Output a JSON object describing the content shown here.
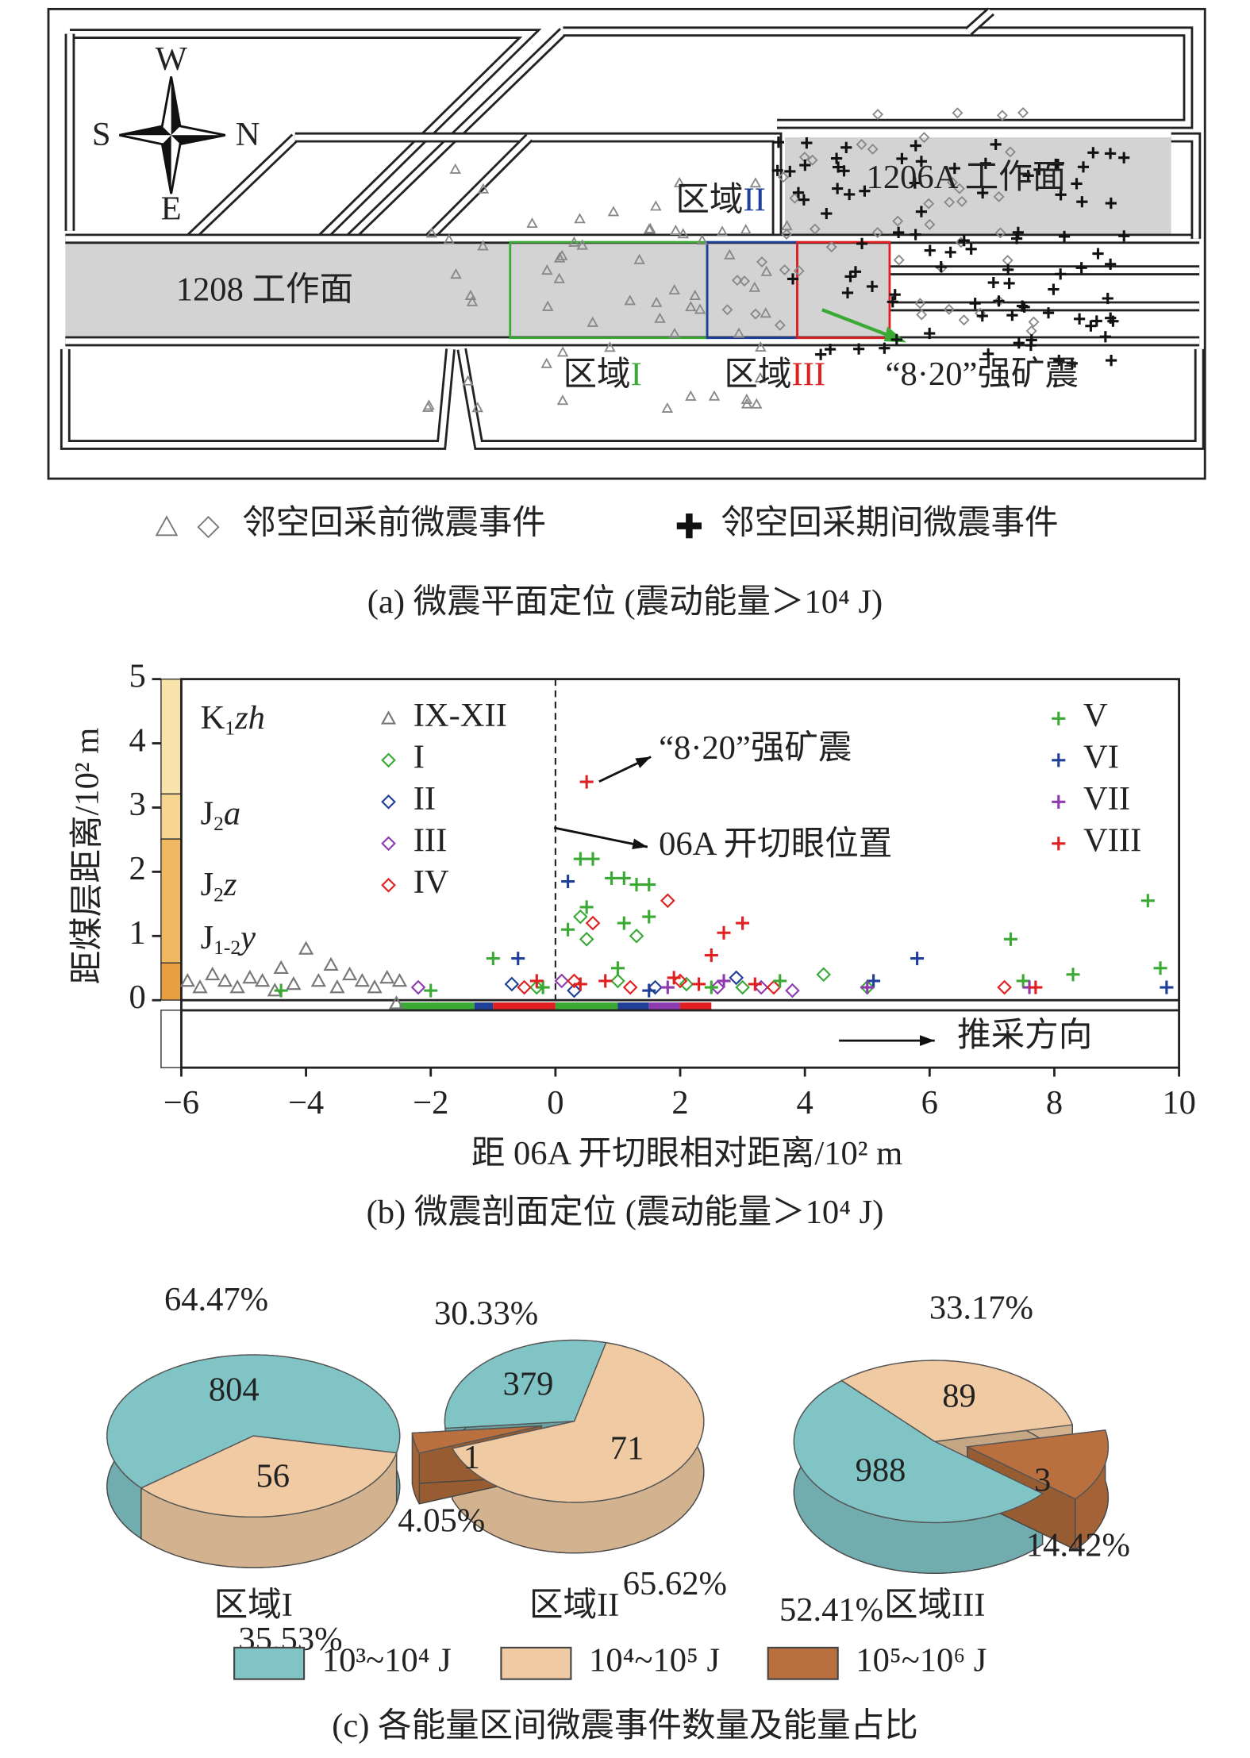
{
  "plan_map": {
    "compass": [
      "W",
      "S",
      "N",
      "E"
    ],
    "face_1206A": "1206A 工作面",
    "face_1208": "1208 工作面",
    "regions": [
      {
        "text": "区域",
        "numeral": "I",
        "color": "#3aaa35"
      },
      {
        "text": "区域",
        "numeral": "II",
        "color": "#1f3f99"
      },
      {
        "text": "区域",
        "numeral": "III",
        "color": "#e02020"
      }
    ],
    "quake": "“8·20”强矿震",
    "legend": [
      "邻空回采前微震事件",
      "邻空回采期间微震事件"
    ],
    "caption": "(a) 微震平面定位 (震动能量＞10⁴ J)"
  },
  "legend_c": [
    {
      "name": "10³~10⁴ J",
      "color": "#80c4c6"
    },
    {
      "name": "10⁴~10⁵ J",
      "color": "#f0caa2"
    },
    {
      "name": "10⁵~10⁶ J",
      "color": "#b9703e"
    }
  ],
  "caption_c": "(c) 各能量区间微震事件数量及能量占比",
  "chart_data": [
    {
      "type": "scatter",
      "caption": "(b) 微震剖面定位 (震动能量＞10⁴ J)",
      "xlabel": "距 06A 开切眼相对距离/10² m",
      "ylabel": "距煤层距离/10² m",
      "xlim": [
        -6,
        10
      ],
      "ylim": [
        -1.05,
        5
      ],
      "xticks": [
        {
          "value": -6,
          "label": "−6"
        },
        {
          "value": -4,
          "label": "−4"
        },
        {
          "value": -2,
          "label": "−2"
        },
        0,
        2,
        4,
        6,
        8,
        10
      ],
      "yticks": [
        0,
        1,
        2,
        3,
        4,
        5
      ],
      "reference_x": 0,
      "annotations": [
        "“8·20”强矿震",
        "06A 开切眼位置",
        "推采方向"
      ],
      "strata": [
        {
          "main": "K",
          "sub": "1",
          "suffix": "zh"
        },
        {
          "main": "J",
          "sub": "2",
          "suffix": "a"
        },
        {
          "main": "J",
          "sub": "2",
          "suffix": "z"
        },
        {
          "main": "J",
          "sub": "1-2",
          "suffix": "y"
        }
      ],
      "series": [
        {
          "name": "IX-XII",
          "color": "#777777",
          "marker": "triangle",
          "x": [
            -5.9,
            -5.7,
            -5.5,
            -5.3,
            -5.1,
            -4.9,
            -4.7,
            -4.5,
            -4.4,
            -4.2,
            -4.0,
            -3.8,
            -3.6,
            -3.5,
            -3.3,
            -3.1,
            -2.9,
            -2.7,
            -2.5,
            -2.55
          ],
          "values": [
            0.3,
            0.2,
            0.4,
            0.3,
            0.2,
            0.35,
            0.3,
            0.15,
            0.5,
            0.25,
            0.8,
            0.3,
            0.55,
            0.2,
            0.4,
            0.3,
            0.2,
            0.35,
            0.3,
            -0.05
          ]
        },
        {
          "name": "I",
          "color": "#3aaa35",
          "marker": "diamond",
          "x": [
            0.4,
            0.5,
            1.3,
            4.3,
            5.0,
            3.0,
            1.0,
            -0.3,
            2.1
          ],
          "values": [
            1.3,
            0.95,
            1.0,
            0.4,
            0.2,
            0.2,
            0.3,
            0.2,
            0.25
          ]
        },
        {
          "name": "II",
          "color": "#1f3f99",
          "marker": "diamond",
          "x": [
            -0.7,
            2.9,
            1.6,
            0.3
          ],
          "values": [
            0.25,
            0.35,
            0.2,
            0.15
          ]
        },
        {
          "name": "III",
          "color": "#8e3bb0",
          "marker": "diamond",
          "x": [
            -2.2,
            3.8,
            3.3,
            0.1,
            2.6
          ],
          "values": [
            0.2,
            0.15,
            0.2,
            0.3,
            0.2
          ]
        },
        {
          "name": "IV",
          "color": "#e02020",
          "marker": "diamond",
          "x": [
            1.8,
            0.6,
            1.2,
            0.3,
            7.2,
            3.5,
            -0.5,
            2.0
          ],
          "values": [
            1.55,
            1.2,
            0.2,
            0.3,
            0.2,
            0.2,
            0.2,
            0.3
          ]
        },
        {
          "name": "V",
          "color": "#3aaa35",
          "marker": "plus",
          "x": [
            0.4,
            0.6,
            1.3,
            1.5,
            1.1,
            0.9,
            0.5,
            0.2,
            1.5,
            1.1,
            -1.0,
            -2.0,
            -4.4,
            7.3,
            9.5,
            9.7,
            8.3,
            7.5,
            1.0,
            3.6,
            -0.2,
            2.5
          ],
          "values": [
            2.2,
            2.2,
            1.8,
            1.8,
            1.9,
            1.9,
            1.45,
            1.1,
            1.3,
            1.2,
            0.65,
            0.15,
            0.15,
            0.95,
            1.55,
            0.5,
            0.4,
            0.3,
            0.5,
            0.3,
            0.2,
            0.2
          ]
        },
        {
          "name": "VI",
          "color": "#1f3f99",
          "marker": "plus",
          "x": [
            0.2,
            -0.6,
            5.8,
            9.8,
            5.1,
            1.5
          ],
          "values": [
            1.85,
            0.65,
            0.65,
            0.2,
            0.3,
            0.15
          ]
        },
        {
          "name": "VII",
          "color": "#8e3bb0",
          "marker": "plus",
          "x": [
            1.8,
            5.0,
            2.7,
            7.6
          ],
          "values": [
            0.2,
            0.2,
            0.3,
            0.2
          ]
        },
        {
          "name": "VIII",
          "color": "#e02020",
          "marker": "plus",
          "x": [
            0.5,
            3.0,
            2.7,
            2.5,
            0.8,
            2.3,
            7.7,
            1.9,
            0.4,
            -0.3,
            3.2
          ],
          "values": [
            3.4,
            1.2,
            1.05,
            0.7,
            0.3,
            0.25,
            0.2,
            0.35,
            0.25,
            0.3,
            0.25
          ]
        }
      ]
    },
    {
      "type": "pie",
      "title": "区域I",
      "values": [
        64.47,
        35.53
      ],
      "value_labels": [
        "64.47%",
        "35.53%"
      ],
      "counts": [
        804,
        56
      ]
    },
    {
      "type": "pie",
      "title": "区域II",
      "values": [
        30.33,
        65.62,
        4.05
      ],
      "value_labels": [
        "30.33%",
        "65.62%",
        "4.05%"
      ],
      "counts": [
        379,
        71,
        1
      ]
    },
    {
      "type": "pie",
      "title": "区域III",
      "values": [
        52.41,
        33.17,
        14.42
      ],
      "value_labels": [
        "52.41%",
        "33.17%",
        "14.42%"
      ],
      "counts": [
        988,
        89,
        3
      ]
    }
  ]
}
